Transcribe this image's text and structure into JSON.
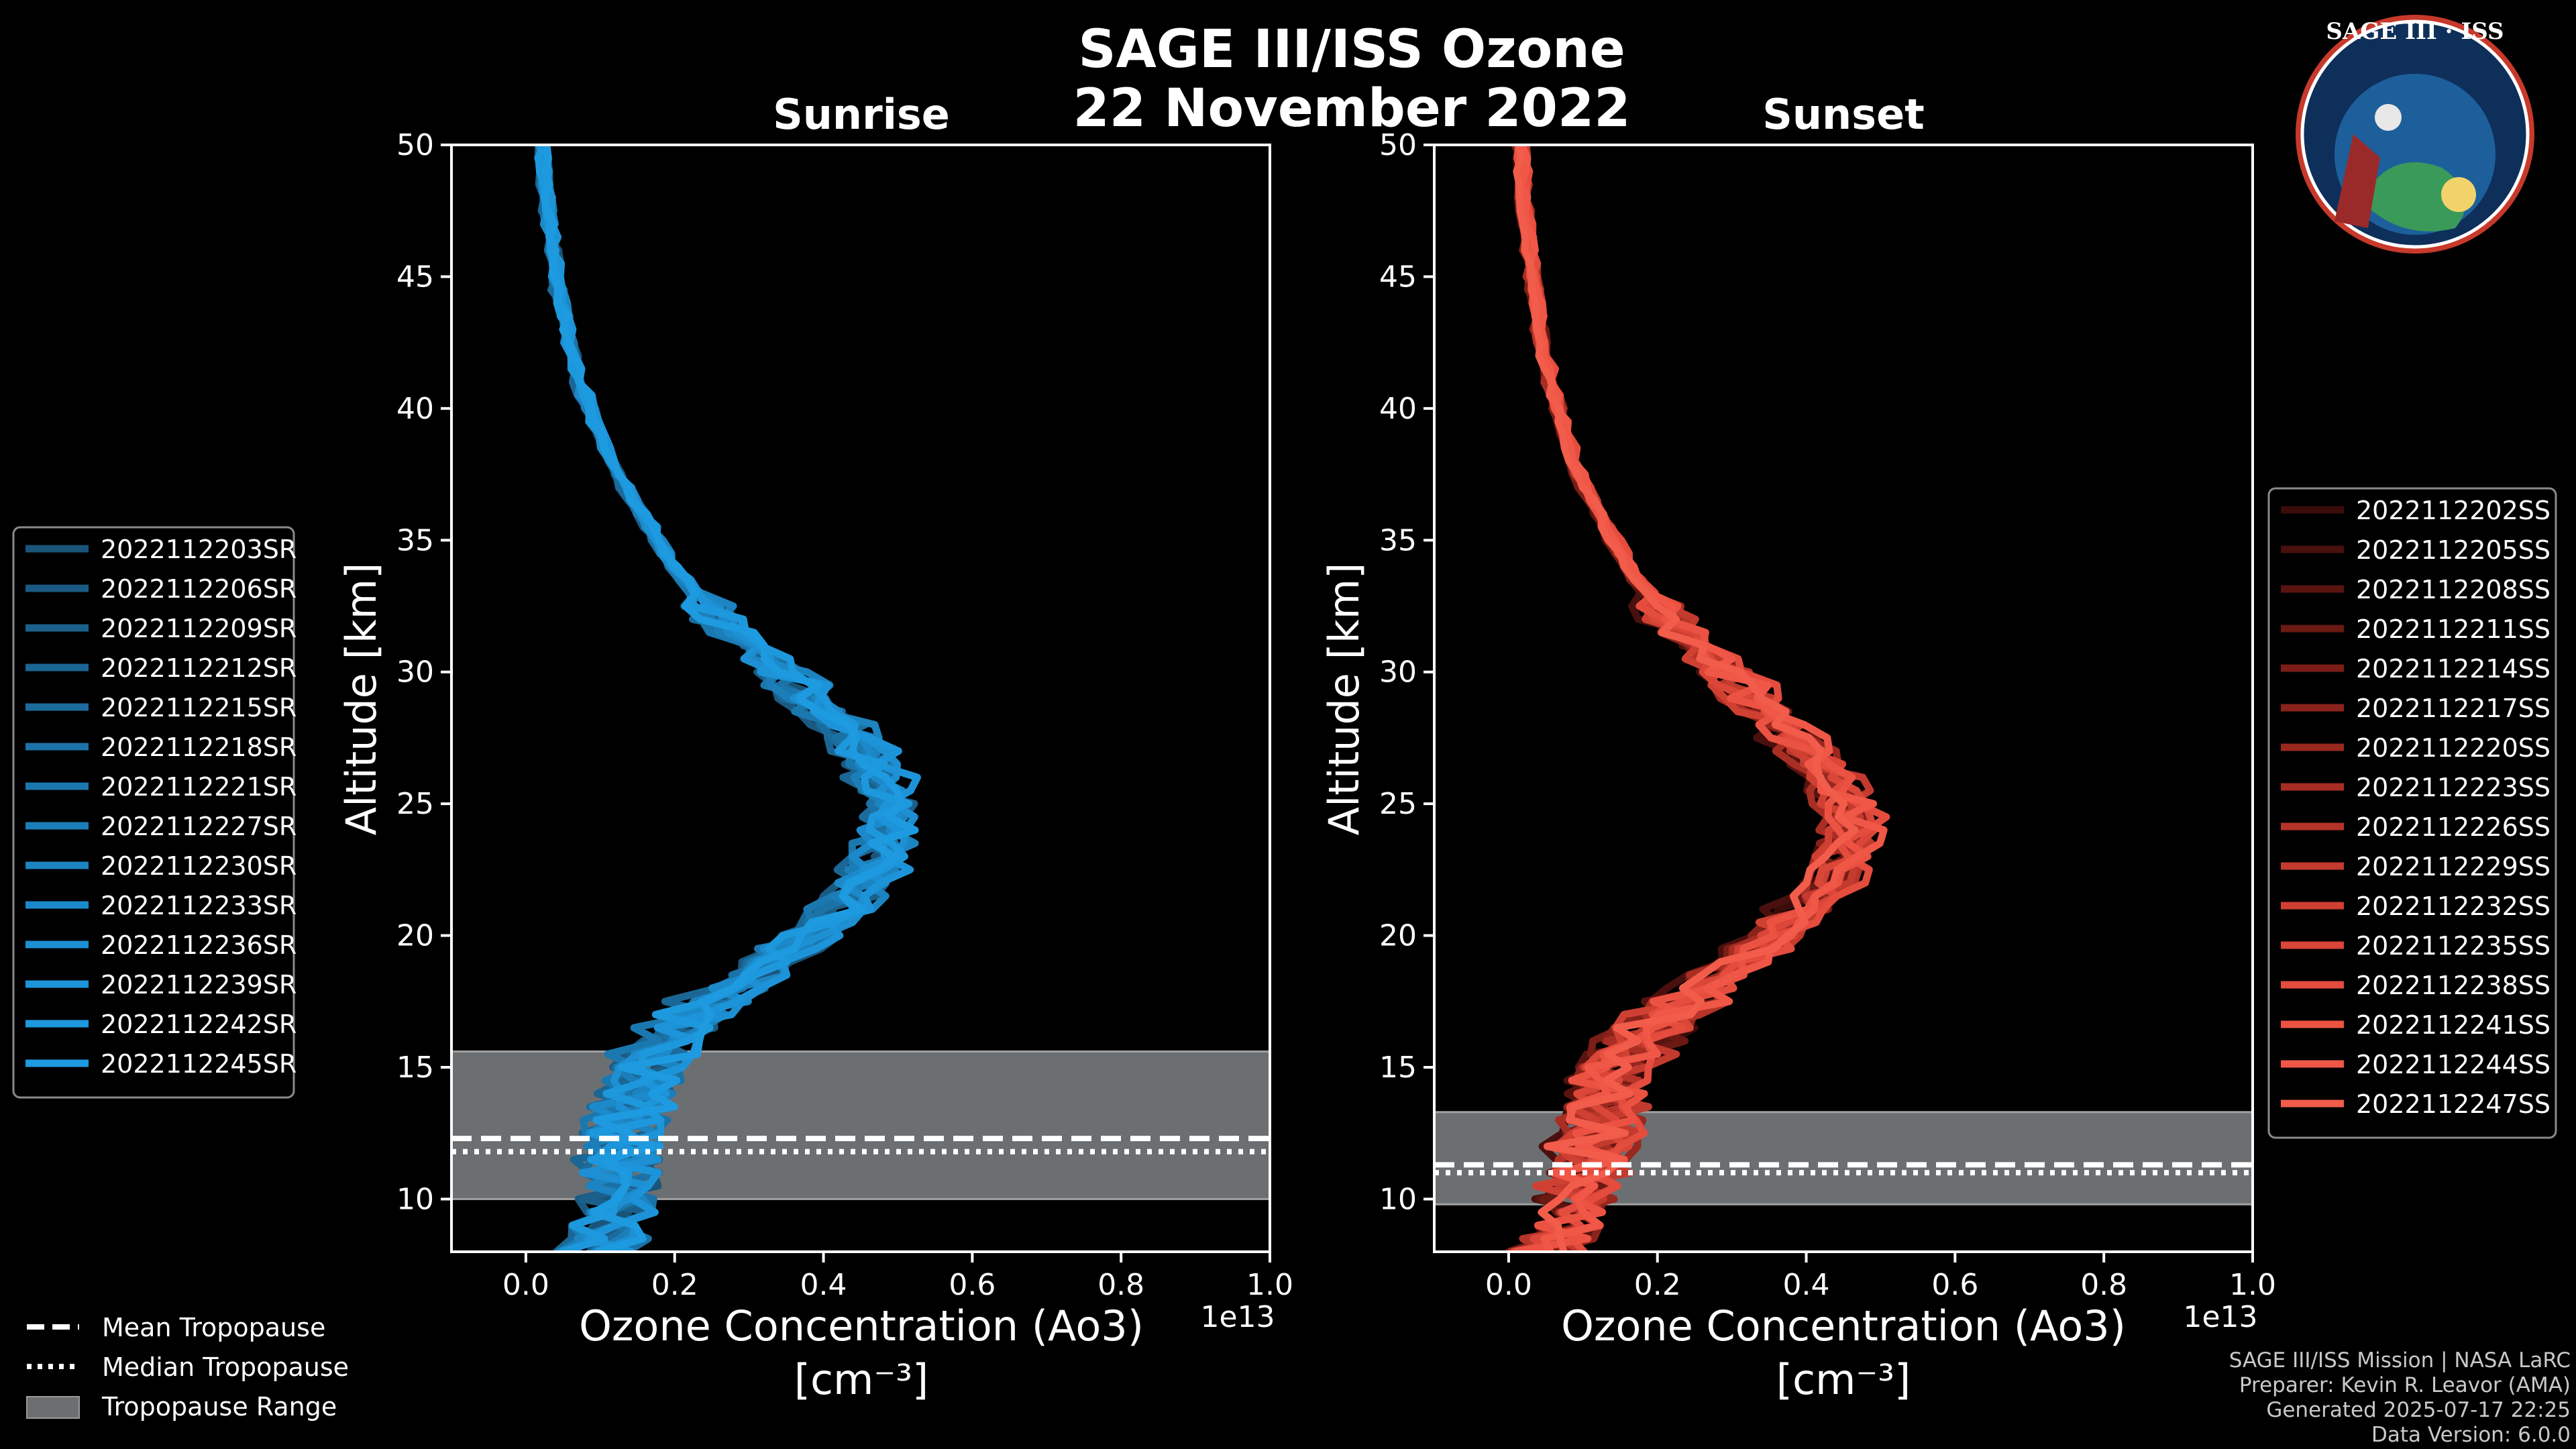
{
  "figure": {
    "title_line1": "SAGE III/ISS Ozone",
    "title_line2": "22 November 2022",
    "logo": {
      "icon": "sage-iii-iss-mission-patch-icon",
      "text": "SAGE III · ISS"
    },
    "footer": [
      "SAGE III/ISS Mission | NASA LaRC",
      "Preparer: Kevin R. Leavor (AMA)",
      "Generated 2025-07-17 22:25",
      "Data Version: 6.0.0"
    ],
    "tropo_legend": [
      {
        "label": "Mean Tropopause",
        "style": "dashed"
      },
      {
        "label": "Median Tropopause",
        "style": "dotted"
      },
      {
        "label": "Tropopause Range",
        "style": "patch"
      }
    ]
  },
  "chart_data": [
    {
      "type": "line",
      "title": "Sunrise",
      "xlabel_line1": "Ozone Concentration (Ao3)",
      "xlabel_line2": "[cm⁻³]",
      "x_offset_text": "1e13",
      "ylabel": "Altitude [km]",
      "xlim": [
        -0.1,
        1.0
      ],
      "ylim": [
        8,
        50
      ],
      "xticks": [
        "0.0",
        "0.2",
        "0.4",
        "0.6",
        "0.8",
        "1.0"
      ],
      "yticks": [
        "10",
        "15",
        "20",
        "25",
        "30",
        "35",
        "40",
        "45",
        "50"
      ],
      "base_color": "#1e9be0",
      "tropopause": {
        "mean_km": 12.3,
        "median_km": 11.8,
        "range_km": [
          10.0,
          15.6
        ]
      },
      "profile_shape": {
        "alt_km": [
          8,
          9,
          10,
          11,
          12,
          13,
          14,
          15,
          16,
          17,
          18,
          19,
          20,
          21,
          22,
          23,
          24,
          25,
          26,
          27,
          28,
          29,
          30,
          31,
          32,
          33,
          34,
          35,
          36,
          37,
          38,
          39,
          40,
          41,
          42,
          43,
          44,
          45,
          46,
          47,
          48,
          49,
          50
        ],
        "o3_1e13": [
          0.1,
          0.11,
          0.12,
          0.12,
          0.13,
          0.13,
          0.14,
          0.15,
          0.18,
          0.22,
          0.27,
          0.32,
          0.37,
          0.41,
          0.44,
          0.46,
          0.47,
          0.47,
          0.46,
          0.44,
          0.41,
          0.37,
          0.33,
          0.29,
          0.25,
          0.22,
          0.19,
          0.17,
          0.15,
          0.13,
          0.11,
          0.095,
          0.082,
          0.07,
          0.06,
          0.052,
          0.045,
          0.039,
          0.034,
          0.03,
          0.027,
          0.024,
          0.022
        ]
      },
      "series": [
        {
          "name": "2022112203SR",
          "color": "#1a5479"
        },
        {
          "name": "2022112206SR",
          "color": "#1a5a82"
        },
        {
          "name": "2022112209SR",
          "color": "#1a608b"
        },
        {
          "name": "2022112212SR",
          "color": "#1a6694"
        },
        {
          "name": "2022112215SR",
          "color": "#1b6c9d"
        },
        {
          "name": "2022112218SR",
          "color": "#1b72a6"
        },
        {
          "name": "2022112221SR",
          "color": "#1b78af"
        },
        {
          "name": "2022112227SR",
          "color": "#1c7eb8"
        },
        {
          "name": "2022112230SR",
          "color": "#1c84c1"
        },
        {
          "name": "2022112233SR",
          "color": "#1c8aca"
        },
        {
          "name": "2022112236SR",
          "color": "#1d8fd2"
        },
        {
          "name": "2022112239SR",
          "color": "#1d94d9"
        },
        {
          "name": "2022112242SR",
          "color": "#1e98dd"
        },
        {
          "name": "2022112245SR",
          "color": "#1e9be0"
        }
      ]
    },
    {
      "type": "line",
      "title": "Sunset",
      "xlabel_line1": "Ozone Concentration (Ao3)",
      "xlabel_line2": "[cm⁻³]",
      "x_offset_text": "1e13",
      "ylabel": "Altitude [km]",
      "xlim": [
        -0.1,
        1.0
      ],
      "ylim": [
        8,
        50
      ],
      "xticks": [
        "0.0",
        "0.2",
        "0.4",
        "0.6",
        "0.8",
        "1.0"
      ],
      "yticks": [
        "10",
        "15",
        "20",
        "25",
        "30",
        "35",
        "40",
        "45",
        "50"
      ],
      "base_color": "#f05a48",
      "tropopause": {
        "mean_km": 11.3,
        "median_km": 11.0,
        "range_km": [
          9.8,
          13.3
        ]
      },
      "profile_shape": {
        "alt_km": [
          8,
          9,
          10,
          11,
          12,
          13,
          14,
          15,
          16,
          17,
          18,
          19,
          20,
          21,
          22,
          23,
          24,
          25,
          26,
          27,
          28,
          29,
          30,
          31,
          32,
          33,
          34,
          35,
          36,
          37,
          38,
          39,
          40,
          41,
          42,
          43,
          44,
          45,
          46,
          47,
          48,
          49,
          50
        ],
        "o3_1e13": [
          0.06,
          0.08,
          0.1,
          0.11,
          0.12,
          0.13,
          0.14,
          0.16,
          0.19,
          0.23,
          0.28,
          0.33,
          0.38,
          0.42,
          0.46,
          0.48,
          0.49,
          0.48,
          0.46,
          0.43,
          0.39,
          0.35,
          0.31,
          0.27,
          0.23,
          0.2,
          0.17,
          0.15,
          0.13,
          0.11,
          0.095,
          0.082,
          0.07,
          0.06,
          0.052,
          0.045,
          0.039,
          0.034,
          0.03,
          0.026,
          0.023,
          0.02,
          0.018
        ]
      },
      "series": [
        {
          "name": "2022112202SS",
          "color": "#3a0c0a"
        },
        {
          "name": "2022112205SS",
          "color": "#4a100d"
        },
        {
          "name": "2022112208SS",
          "color": "#5a1410"
        },
        {
          "name": "2022112211SS",
          "color": "#6a1913"
        },
        {
          "name": "2022112214SS",
          "color": "#7a1e17"
        },
        {
          "name": "2022112217SS",
          "color": "#8a231b"
        },
        {
          "name": "2022112220SS",
          "color": "#99281f"
        },
        {
          "name": "2022112223SS",
          "color": "#a82e24"
        },
        {
          "name": "2022112226SS",
          "color": "#b63429"
        },
        {
          "name": "2022112229SS",
          "color": "#c33a2e"
        },
        {
          "name": "2022112232SS",
          "color": "#cf4033"
        },
        {
          "name": "2022112235SS",
          "color": "#da4638"
        },
        {
          "name": "2022112238SS",
          "color": "#e44c3d"
        },
        {
          "name": "2022112241SS",
          "color": "#ec5242"
        },
        {
          "name": "2022112244SS",
          "color": "#f05746"
        },
        {
          "name": "2022112247SS",
          "color": "#f25c4a"
        }
      ]
    }
  ]
}
